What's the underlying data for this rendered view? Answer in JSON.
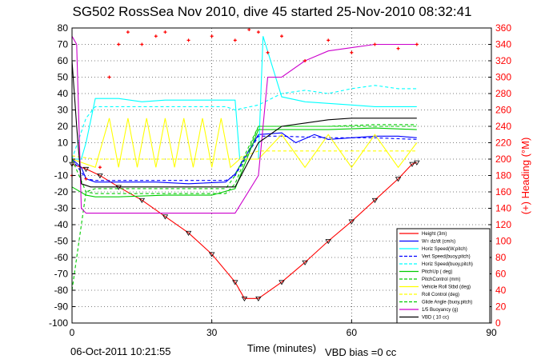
{
  "chart_data": {
    "type": "line",
    "title": "SG502 RossSea Nov 2010, dive 45 started 25-Nov-2010 08:32:41",
    "xlabel": "Time (minutes)",
    "ylabel_right": "(+) Heading (°M)",
    "footer_date": "06-Oct-2011 10:21:55",
    "footer_note": "VBD bias =0 cc",
    "xlim": [
      0,
      90
    ],
    "ylim": [
      -100,
      80
    ],
    "y2lim": [
      0,
      360
    ],
    "xticks": [
      0,
      30,
      60,
      90
    ],
    "yticks": [
      80,
      70,
      60,
      50,
      40,
      30,
      20,
      10,
      0,
      -10,
      -20,
      -30,
      -40,
      -50,
      -60,
      -70,
      -80,
      -90,
      -100
    ],
    "y2ticks": [
      360,
      340,
      320,
      300,
      280,
      260,
      240,
      220,
      200,
      180,
      160,
      140,
      120,
      100,
      80,
      60,
      40,
      20,
      0
    ],
    "grid": true,
    "legend_position": "bottom-right",
    "series": [
      {
        "name": "Height (3m)",
        "color": "#ff0000",
        "style": "solid",
        "x": [
          0,
          3,
          6,
          10,
          15,
          20,
          25,
          30,
          35,
          37,
          40,
          45,
          50,
          55,
          60,
          65,
          70,
          73,
          74
        ],
        "y": [
          -3,
          -6,
          -10,
          -17,
          -25,
          -35,
          -45,
          -58,
          -75,
          -85,
          -85,
          -75,
          -63,
          -50,
          -38,
          -25,
          -12,
          -3,
          -2
        ]
      },
      {
        "name": "W= dz/dt (cm/s)",
        "color": "#0000ff",
        "style": "solid",
        "x": [
          0,
          2,
          3,
          5,
          10,
          18,
          25,
          33,
          35,
          40,
          45,
          48,
          52,
          55,
          60,
          65,
          70,
          74
        ],
        "y": [
          0,
          -5,
          -12,
          -14,
          -14,
          -14,
          -15,
          -14,
          -9,
          15,
          16,
          10,
          15,
          12,
          13,
          14,
          14,
          13
        ]
      },
      {
        "name": "Horiz Speed(W,pitch)",
        "color": "#00ffff",
        "style": "solid",
        "x": [
          0,
          2,
          3,
          5,
          10,
          15,
          20,
          25,
          30,
          35,
          36,
          40,
          41,
          45,
          50,
          55,
          60,
          65,
          70,
          74
        ],
        "y": [
          0,
          0,
          10,
          37,
          37,
          35,
          36,
          36,
          36,
          36,
          0,
          0,
          75,
          38,
          35,
          34,
          33,
          32,
          32,
          32
        ]
      },
      {
        "name": "Vert Speed(buoy,pitch)",
        "color": "#0000ff",
        "style": "dashed",
        "x": [
          0,
          3,
          5,
          10,
          20,
          33,
          35,
          40,
          45,
          55,
          65,
          74
        ],
        "y": [
          0,
          -12,
          -13,
          -13,
          -13,
          -13,
          -10,
          14,
          14,
          13,
          13,
          12
        ]
      },
      {
        "name": "Horiz Speed(buoy,pitch)",
        "color": "#00ffff",
        "style": "dashed",
        "x": [
          0,
          3,
          5,
          10,
          20,
          33,
          35,
          40,
          45,
          50,
          55,
          60,
          65,
          70,
          74
        ],
        "y": [
          0,
          25,
          32,
          32,
          32,
          32,
          30,
          33,
          40,
          42,
          40,
          43,
          45,
          43,
          43
        ]
      },
      {
        "name": "PitchUp ( deg)",
        "color": "#00cc00",
        "style": "solid",
        "x": [
          0,
          3,
          5,
          10,
          20,
          30,
          35,
          40,
          45,
          55,
          65,
          74
        ],
        "y": [
          -17,
          -22,
          -23,
          -23,
          -22,
          -22,
          -18,
          18,
          18,
          18,
          19,
          18
        ]
      },
      {
        "name": "PitchControl (mm)",
        "color": "#00cc00",
        "style": "dashed",
        "x": [
          0,
          3,
          5,
          10,
          20,
          33,
          35,
          40,
          45,
          55,
          65,
          74
        ],
        "y": [
          -80,
          -20,
          -18,
          -18,
          -18,
          -18,
          -10,
          20,
          20,
          20,
          20,
          20
        ]
      },
      {
        "name": "Vehicle Roll Stbd (deg)",
        "color": "#ffff00",
        "style": "solid",
        "x": [
          0,
          5,
          8,
          10,
          12,
          14,
          16,
          18,
          20,
          22,
          24,
          26,
          28,
          30,
          32,
          34,
          36,
          40,
          45,
          50,
          55,
          60,
          65,
          70,
          74
        ],
        "y": [
          0,
          -5,
          25,
          -5,
          25,
          -5,
          25,
          -5,
          25,
          -5,
          25,
          -5,
          25,
          -5,
          25,
          -5,
          0,
          0,
          15,
          -5,
          15,
          -5,
          15,
          -5,
          10
        ]
      },
      {
        "name": "Roll Control (deg)",
        "color": "#ffff00",
        "style": "dashed",
        "x": [
          0,
          5,
          10,
          20,
          30,
          35,
          40,
          45,
          55,
          65,
          74
        ],
        "y": [
          2,
          0,
          0,
          0,
          0,
          0,
          5,
          5,
          5,
          5,
          5
        ]
      },
      {
        "name": "Glide Angle (buoy,pitch)",
        "color": "#00cc00",
        "style": "dashed",
        "x": [
          0,
          3,
          5,
          10,
          20,
          33,
          35,
          40,
          45,
          55,
          65,
          74
        ],
        "y": [
          0,
          -20,
          -21,
          -21,
          -21,
          -21,
          -15,
          20,
          20,
          20,
          21,
          21
        ]
      },
      {
        "name": "1/5 Buoyancy (g)",
        "color": "#cc00cc",
        "style": "solid",
        "x": [
          0,
          1,
          2,
          3,
          5,
          20,
          30,
          35,
          40,
          42,
          45,
          50,
          55,
          60,
          65,
          70,
          74
        ],
        "y": [
          75,
          70,
          -30,
          -33,
          -33,
          -33,
          -33,
          -33,
          -10,
          50,
          50,
          60,
          66,
          68,
          70,
          70,
          70
        ]
      },
      {
        "name": "VBD ( 10 cc)",
        "color": "#000000",
        "style": "solid",
        "x": [
          0,
          1,
          2,
          4,
          10,
          20,
          30,
          35,
          40,
          45,
          50,
          55,
          60,
          65,
          70,
          74
        ],
        "y": [
          60,
          20,
          -15,
          -17,
          -17,
          -17,
          -17,
          -17,
          10,
          20,
          22,
          24,
          25,
          25,
          25,
          25
        ]
      },
      {
        "name": "Heading",
        "color": "#ff0000",
        "style": "markers",
        "axis": "right",
        "x": [
          0,
          3,
          6,
          8,
          10,
          12,
          15,
          18,
          20,
          25,
          30,
          35,
          38,
          40,
          42,
          45,
          50,
          55,
          60,
          65,
          70,
          74
        ],
        "y": [
          180,
          176,
          190,
          300,
          340,
          355,
          340,
          350,
          355,
          345,
          350,
          345,
          358,
          355,
          330,
          350,
          320,
          345,
          330,
          340,
          335,
          340
        ]
      }
    ]
  }
}
